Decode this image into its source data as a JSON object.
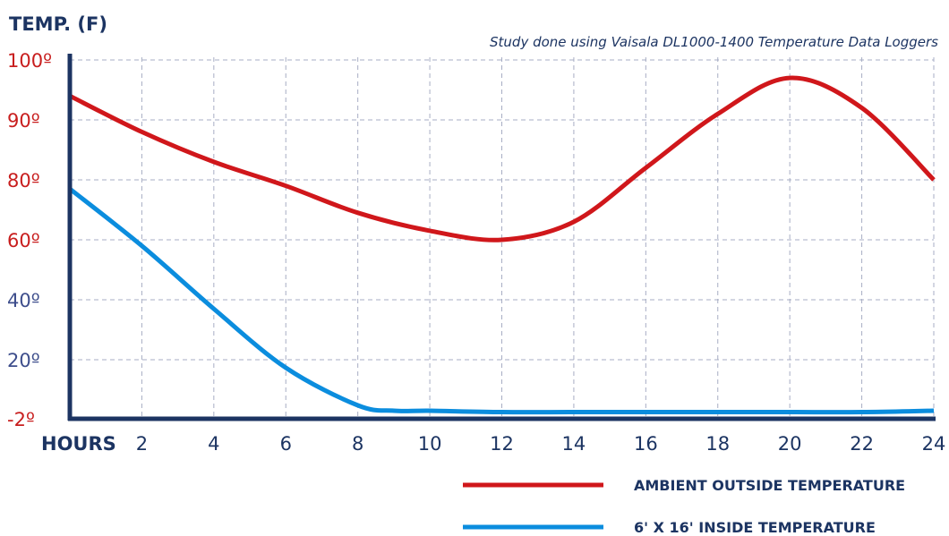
{
  "chart_data": {
    "type": "line",
    "title": "",
    "ylabel": "TEMP. (F)",
    "xlabel": "HOURS",
    "subtitle": "Study done using Vaisala DL1000-1400 Temperature Data Loggers",
    "ytick_labels": [
      "-2º",
      "20º",
      "40º",
      "60º",
      "80º",
      "90º",
      "100º"
    ],
    "xticks": [
      2,
      4,
      6,
      8,
      10,
      12,
      14,
      16,
      18,
      20,
      22,
      24
    ],
    "xlim": [
      0,
      24
    ],
    "grid": true,
    "legend_position": "bottom-right",
    "series": [
      {
        "name": "AMBIENT OUTSIDE TEMPERATURE",
        "color": "#d0171b",
        "x": [
          0,
          2,
          4,
          6,
          8,
          10,
          12,
          14,
          16,
          18,
          20,
          22,
          24
        ],
        "y": [
          94,
          88,
          83,
          78,
          69,
          63,
          60,
          66,
          82,
          91,
          97,
          92,
          80
        ]
      },
      {
        "name": "6' X 16' INSIDE TEMPERATURE",
        "color": "#0b8dde",
        "x": [
          0,
          2,
          4,
          6,
          8,
          9,
          10,
          12,
          14,
          16,
          18,
          20,
          22,
          24
        ],
        "y": [
          77,
          58,
          37,
          17,
          3,
          1,
          1,
          0.5,
          0.5,
          0.5,
          0.5,
          0.5,
          0.5,
          1
        ]
      }
    ]
  },
  "colors": {
    "axis": "#1c3462",
    "ytick_red": "#c81e1e",
    "ytick_blue": "#3e4e8c"
  }
}
